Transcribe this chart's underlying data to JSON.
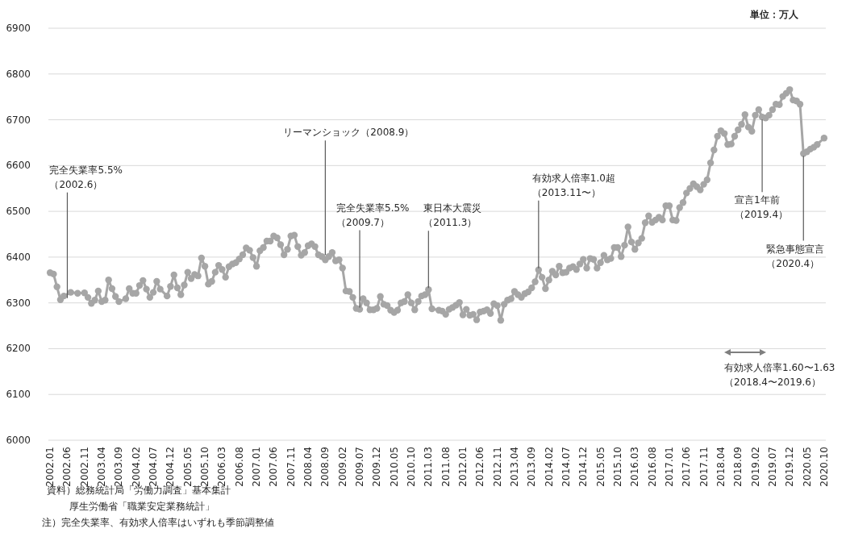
{
  "chart_data": {
    "type": "line",
    "marker": "circle",
    "grid": "y",
    "xlim": [
      "2002-01",
      "2020-10"
    ],
    "ylim": [
      6000,
      6900
    ],
    "yticks": [
      6000,
      6100,
      6200,
      6300,
      6400,
      6500,
      6600,
      6700,
      6800,
      6900
    ],
    "xticks": [
      {
        "value": "2002-01",
        "label": "2002.01"
      },
      {
        "value": "2002-06",
        "label": "2002.06"
      },
      {
        "value": "2002-11",
        "label": "2002.11"
      },
      {
        "value": "2003-04",
        "label": "2003.04"
      },
      {
        "value": "2003-09",
        "label": "2003.09"
      },
      {
        "value": "2004-02",
        "label": "2004.02"
      },
      {
        "value": "2004-07",
        "label": "2004.07"
      },
      {
        "value": "2004-12",
        "label": "2004.12"
      },
      {
        "value": "2005-05",
        "label": "2005.05"
      },
      {
        "value": "2005-10",
        "label": "2005.10"
      },
      {
        "value": "2006-03",
        "label": "2006.03"
      },
      {
        "value": "2006-08",
        "label": "2006.08"
      },
      {
        "value": "2007-01",
        "label": "2007.01"
      },
      {
        "value": "2007-06",
        "label": "2007.06"
      },
      {
        "value": "2007-11",
        "label": "2007.11"
      },
      {
        "value": "2008-04",
        "label": "2008.04"
      },
      {
        "value": "2008-09",
        "label": "2008.09"
      },
      {
        "value": "2009-02",
        "label": "2009.02"
      },
      {
        "value": "2009-07",
        "label": "2009.07"
      },
      {
        "value": "2009-12",
        "label": "2009.12"
      },
      {
        "value": "2010-05",
        "label": "2010.05"
      },
      {
        "value": "2010-10",
        "label": "2010.10"
      },
      {
        "value": "2011-03",
        "label": "2011.03"
      },
      {
        "value": "2011-08",
        "label": "2011.08"
      },
      {
        "value": "2012-01",
        "label": "2012.01"
      },
      {
        "value": "2012-06",
        "label": "2012.06"
      },
      {
        "value": "2012-11",
        "label": "2012.11"
      },
      {
        "value": "2013-04",
        "label": "2013.04"
      },
      {
        "value": "2013-09",
        "label": "2013.09"
      },
      {
        "value": "2014-02",
        "label": "2014.02"
      },
      {
        "value": "2014-07",
        "label": "2014.07"
      },
      {
        "value": "2014-12",
        "label": "2014.12"
      },
      {
        "value": "2015-05",
        "label": "2015.05"
      },
      {
        "value": "2015-10",
        "label": "2015.10"
      },
      {
        "value": "2016-03",
        "label": "2016.03"
      },
      {
        "value": "2016-08",
        "label": "2016.08"
      },
      {
        "value": "2017-01",
        "label": "2017.01"
      },
      {
        "value": "2017-06",
        "label": "2017.06"
      },
      {
        "value": "2017-11",
        "label": "2017.11"
      },
      {
        "value": "2018-04",
        "label": "2018.04"
      },
      {
        "value": "2018-09",
        "label": "2018.09"
      },
      {
        "value": "2019-02",
        "label": "2019.02"
      },
      {
        "value": "2019-07",
        "label": "2019.07"
      },
      {
        "value": "2019-12",
        "label": "2019.12"
      },
      {
        "value": "2020-05",
        "label": "2020.05"
      },
      {
        "value": "2020-10",
        "label": "2020.10"
      }
    ],
    "series": [
      {
        "color": "#a6a6a6",
        "x": [
          "2002-01",
          "2002-02",
          "2002-03",
          "2002-04",
          "2002-05",
          "2002-07",
          "2002-09",
          "2002-11",
          "2002-12",
          "2003-01",
          "2003-02",
          "2003-03",
          "2003-04",
          "2003-05",
          "2003-06",
          "2003-07",
          "2003-08",
          "2003-09",
          "2003-11",
          "2003-12",
          "2004-01",
          "2004-02",
          "2004-03",
          "2004-04",
          "2004-05",
          "2004-06",
          "2004-07",
          "2004-08",
          "2004-09",
          "2004-11",
          "2004-12",
          "2005-01",
          "2005-02",
          "2005-03",
          "2005-04",
          "2005-05",
          "2005-06",
          "2005-07",
          "2005-08",
          "2005-09",
          "2005-10",
          "2005-11",
          "2005-12",
          "2006-01",
          "2006-02",
          "2006-03",
          "2006-04",
          "2006-05",
          "2006-06",
          "2006-07",
          "2006-08",
          "2006-09",
          "2006-10",
          "2006-11",
          "2006-12",
          "2007-01",
          "2007-02",
          "2007-03",
          "2007-04",
          "2007-05",
          "2007-06",
          "2007-07",
          "2007-08",
          "2007-09",
          "2007-10",
          "2007-11",
          "2007-12",
          "2008-01",
          "2008-02",
          "2008-03",
          "2008-04",
          "2008-05",
          "2008-06",
          "2008-07",
          "2008-08",
          "2008-09",
          "2008-10",
          "2008-11",
          "2008-12",
          "2009-01",
          "2009-02",
          "2009-03",
          "2009-04",
          "2009-05",
          "2009-06",
          "2009-07",
          "2009-08",
          "2009-09",
          "2009-10",
          "2009-11",
          "2009-12",
          "2010-01",
          "2010-02",
          "2010-03",
          "2010-04",
          "2010-05",
          "2010-06",
          "2010-07",
          "2010-08",
          "2010-09",
          "2010-10",
          "2010-11",
          "2010-12",
          "2011-01",
          "2011-02",
          "2011-03",
          "2011-04",
          "2011-06",
          "2011-07",
          "2011-08",
          "2011-09",
          "2011-10",
          "2011-11",
          "2011-12",
          "2012-01",
          "2012-02",
          "2012-03",
          "2012-04",
          "2012-05",
          "2012-06",
          "2012-07",
          "2012-08",
          "2012-09",
          "2012-10",
          "2012-11",
          "2012-12",
          "2013-01",
          "2013-02",
          "2013-03",
          "2013-04",
          "2013-05",
          "2013-06",
          "2013-07",
          "2013-08",
          "2013-09",
          "2013-10",
          "2013-11",
          "2013-12",
          "2014-01",
          "2014-02",
          "2014-03",
          "2014-04",
          "2014-05",
          "2014-06",
          "2014-07",
          "2014-08",
          "2014-09",
          "2014-10",
          "2014-11",
          "2014-12",
          "2015-01",
          "2015-02",
          "2015-03",
          "2015-04",
          "2015-05",
          "2015-06",
          "2015-07",
          "2015-08",
          "2015-09",
          "2015-10",
          "2015-11",
          "2015-12",
          "2016-01",
          "2016-02",
          "2016-03",
          "2016-04",
          "2016-05",
          "2016-06",
          "2016-07",
          "2016-08",
          "2016-09",
          "2016-10",
          "2016-11",
          "2016-12",
          "2017-01",
          "2017-02",
          "2017-03",
          "2017-04",
          "2017-05",
          "2017-06",
          "2017-07",
          "2017-08",
          "2017-09",
          "2017-10",
          "2017-11",
          "2017-12",
          "2018-01",
          "2018-02",
          "2018-03",
          "2018-04",
          "2018-05",
          "2018-06",
          "2018-07",
          "2018-08",
          "2018-09",
          "2018-10",
          "2018-11",
          "2018-12",
          "2019-01",
          "2019-02",
          "2019-03",
          "2019-04",
          "2019-05",
          "2019-06",
          "2019-07",
          "2019-08",
          "2019-09",
          "2019-10",
          "2019-11",
          "2019-12",
          "2020-01",
          "2020-02",
          "2020-03",
          "2020-04",
          "2020-05",
          "2020-06",
          "2020-07",
          "2020-08",
          "2020-10"
        ],
        "values": [
          6366,
          6363,
          6335,
          6307,
          6315,
          6323,
          6321,
          6322,
          6312,
          6299,
          6306,
          6326,
          6303,
          6306,
          6350,
          6331,
          6314,
          6303,
          6309,
          6331,
          6321,
          6321,
          6338,
          6349,
          6330,
          6312,
          6323,
          6347,
          6330,
          6315,
          6336,
          6361,
          6333,
          6318,
          6339,
          6367,
          6353,
          6362,
          6359,
          6398,
          6380,
          6341,
          6347,
          6367,
          6382,
          6373,
          6356,
          6379,
          6385,
          6388,
          6396,
          6405,
          6420,
          6415,
          6399,
          6380,
          6414,
          6421,
          6435,
          6435,
          6446,
          6442,
          6427,
          6405,
          6417,
          6446,
          6448,
          6423,
          6404,
          6410,
          6425,
          6429,
          6423,
          6405,
          6401,
          6394,
          6401,
          6410,
          6392,
          6394,
          6376,
          6326,
          6325,
          6312,
          6288,
          6286,
          6309,
          6300,
          6285,
          6285,
          6288,
          6314,
          6297,
          6294,
          6284,
          6279,
          6284,
          6300,
          6303,
          6318,
          6300,
          6285,
          6303,
          6315,
          6318,
          6329,
          6287,
          6284,
          6282,
          6275,
          6286,
          6290,
          6295,
          6301,
          6274,
          6286,
          6273,
          6275,
          6263,
          6280,
          6282,
          6285,
          6277,
          6298,
          6294,
          6262,
          6297,
          6306,
          6309,
          6325,
          6318,
          6312,
          6320,
          6324,
          6333,
          6346,
          6372,
          6356,
          6331,
          6350,
          6369,
          6361,
          6380,
          6366,
          6367,
          6376,
          6379,
          6373,
          6385,
          6395,
          6376,
          6397,
          6395,
          6376,
          6388,
          6404,
          6394,
          6397,
          6421,
          6421,
          6401,
          6426,
          6466,
          6433,
          6417,
          6431,
          6441,
          6475,
          6490,
          6476,
          6481,
          6487,
          6481,
          6512,
          6512,
          6481,
          6480,
          6508,
          6519,
          6540,
          6550,
          6560,
          6554,
          6547,
          6559,
          6569,
          6606,
          6634,
          6664,
          6676,
          6670,
          6646,
          6647,
          6664,
          6678,
          6690,
          6711,
          6684,
          6675,
          6710,
          6722,
          6706,
          6704,
          6710,
          6722,
          6734,
          6733,
          6751,
          6758,
          6766,
          6743,
          6741,
          6734,
          6626,
          6630,
          6636,
          6640,
          6646,
          6660
        ]
      }
    ],
    "annotations": [
      "単位：万人",
      {
        "text": "完全失業率5.5%（2002.6）",
        "x": "2002-06",
        "y": 6307
      },
      {
        "text": "リーマンショック（2008.9）",
        "x": "2008-09",
        "y": 6401
      },
      {
        "text": "完全失業率5.5%（2009.7）",
        "x": "2009-07",
        "y": 6286
      },
      {
        "text": "東日本大震災（2011.3）",
        "x": "2011-03",
        "y": 6329
      },
      {
        "text": "有効求人倍率1.0超（2013.11〜）",
        "x": "2013-11",
        "y": 6372
      },
      {
        "text": "宣言1年前（2019.4）",
        "x": "2019-04",
        "y": 6706
      },
      {
        "text": "緊急事態宣言（2020.4）",
        "x": "2020-04",
        "y": 6626
      },
      "有効求人倍率1.60〜1.63（2018.4〜2019.6）",
      "資料）総務統計局「労働力調査」基本集計",
      "厚生労働省「職業安定業務統計」",
      "注）完全失業率、有効求人倍率はいずれも季節調整値"
    ]
  }
}
